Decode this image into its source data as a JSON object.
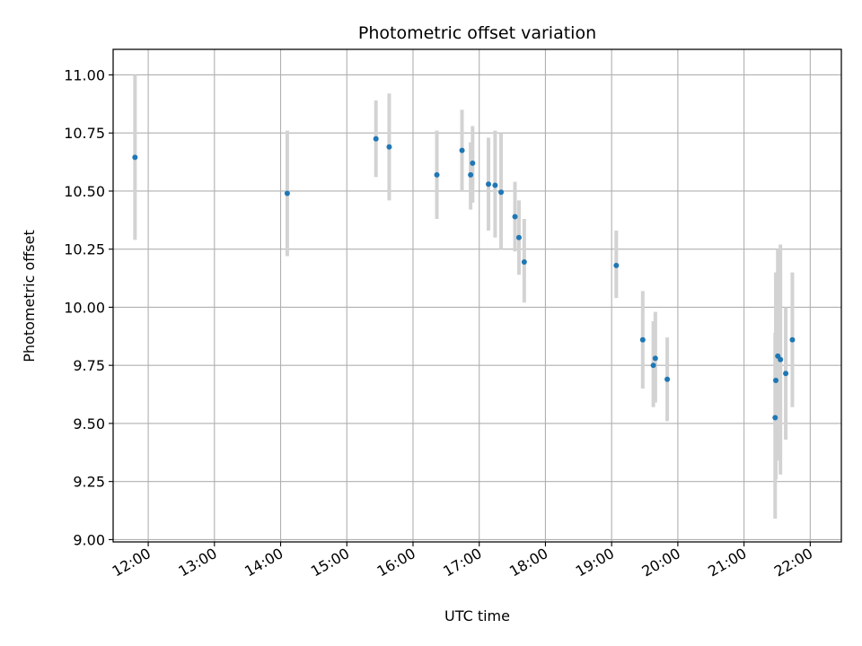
{
  "chart_data": {
    "type": "scatter",
    "title": "Photometric offset variation",
    "xlabel": "UTC time",
    "ylabel": "Photometric offset",
    "x_unit": "hour",
    "xlim": [
      11.47,
      22.47
    ],
    "ylim": [
      8.99,
      11.11
    ],
    "x_ticks": [
      12,
      13,
      14,
      15,
      16,
      17,
      18,
      19,
      20,
      21,
      22
    ],
    "x_tick_labels": [
      "12:00",
      "13:00",
      "14:00",
      "15:00",
      "16:00",
      "17:00",
      "18:00",
      "19:00",
      "20:00",
      "21:00",
      "22:00"
    ],
    "y_ticks": [
      9.0,
      9.25,
      9.5,
      9.75,
      10.0,
      10.25,
      10.5,
      10.75,
      11.0
    ],
    "y_tick_labels": [
      "9.00",
      "9.25",
      "9.50",
      "9.75",
      "10.00",
      "10.25",
      "10.50",
      "10.75",
      "11.00"
    ],
    "grid": true,
    "marker_color": "#1f77b4",
    "errorbar_color": "#d3d3d3",
    "points": [
      {
        "x": 11.8,
        "y": 10.645,
        "yerr": [
          10.29,
          11.0
        ]
      },
      {
        "x": 14.1,
        "y": 10.49,
        "yerr": [
          10.22,
          10.76
        ]
      },
      {
        "x": 15.44,
        "y": 10.725,
        "yerr": [
          10.56,
          10.89
        ]
      },
      {
        "x": 15.64,
        "y": 10.69,
        "yerr": [
          10.46,
          10.92
        ]
      },
      {
        "x": 16.36,
        "y": 10.57,
        "yerr": [
          10.38,
          10.76
        ]
      },
      {
        "x": 16.74,
        "y": 10.675,
        "yerr": [
          10.5,
          10.85
        ]
      },
      {
        "x": 16.87,
        "y": 10.57,
        "yerr": [
          10.42,
          10.71
        ]
      },
      {
        "x": 16.9,
        "y": 10.62,
        "yerr": [
          10.45,
          10.78
        ]
      },
      {
        "x": 17.14,
        "y": 10.53,
        "yerr": [
          10.33,
          10.73
        ]
      },
      {
        "x": 17.24,
        "y": 10.525,
        "yerr": [
          10.3,
          10.76
        ]
      },
      {
        "x": 17.33,
        "y": 10.495,
        "yerr": [
          10.25,
          10.75
        ]
      },
      {
        "x": 17.54,
        "y": 10.39,
        "yerr": [
          10.24,
          10.54
        ]
      },
      {
        "x": 17.6,
        "y": 10.3,
        "yerr": [
          10.14,
          10.46
        ]
      },
      {
        "x": 17.68,
        "y": 10.195,
        "yerr": [
          10.02,
          10.38
        ]
      },
      {
        "x": 19.07,
        "y": 10.18,
        "yerr": [
          10.04,
          10.33
        ]
      },
      {
        "x": 19.47,
        "y": 9.86,
        "yerr": [
          9.65,
          10.07
        ]
      },
      {
        "x": 19.63,
        "y": 9.75,
        "yerr": [
          9.57,
          9.94
        ]
      },
      {
        "x": 19.66,
        "y": 9.78,
        "yerr": [
          9.59,
          9.98
        ]
      },
      {
        "x": 19.84,
        "y": 9.69,
        "yerr": [
          9.51,
          9.87
        ]
      },
      {
        "x": 21.47,
        "y": 9.525,
        "yerr": [
          9.09,
          9.89
        ]
      },
      {
        "x": 21.48,
        "y": 9.685,
        "yerr": [
          9.26,
          10.15
        ]
      },
      {
        "x": 21.51,
        "y": 9.79,
        "yerr": [
          9.34,
          10.25
        ]
      },
      {
        "x": 21.55,
        "y": 9.775,
        "yerr": [
          9.28,
          10.27
        ]
      },
      {
        "x": 21.63,
        "y": 9.715,
        "yerr": [
          9.43,
          10.0
        ]
      },
      {
        "x": 21.73,
        "y": 9.86,
        "yerr": [
          9.57,
          10.15
        ]
      }
    ]
  }
}
